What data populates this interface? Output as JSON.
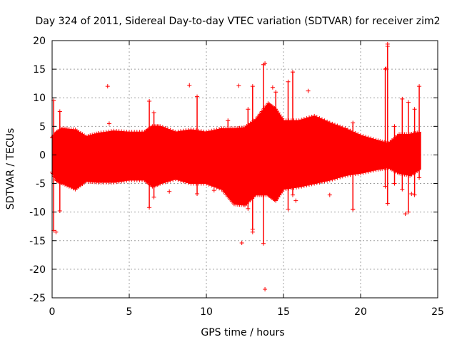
{
  "chart_data": {
    "type": "scatter",
    "title": "Day 324 of 2011, Sidereal Day-to-day VTEC variation (SDTVAR) for receiver zim2",
    "xlabel": "GPS time / hours",
    "ylabel": "SDTVAR / TECUs",
    "xlim": [
      0,
      25
    ],
    "ylim": [
      -25,
      20
    ],
    "x_ticks": [
      "0",
      "5",
      "10",
      "15",
      "20",
      "25"
    ],
    "y_ticks": [
      "20",
      "15",
      "10",
      "5",
      "0",
      "-5",
      "-10",
      "-15",
      "-20",
      "-25"
    ],
    "grid": true,
    "marker": "+",
    "color": "#ff0000",
    "envelope": {
      "x": [
        0,
        0.3,
        0.7,
        1.5,
        2.2,
        3.0,
        4.0,
        5.0,
        6.0,
        6.5,
        7.0,
        8.0,
        9.0,
        10.0,
        11.0,
        11.8,
        12.5,
        13.2,
        14.0,
        14.5,
        15.0,
        16.0,
        17.0,
        18.0,
        19.0,
        20.0,
        21.0,
        21.8,
        22.5,
        23.2,
        23.9
      ],
      "upper": [
        3.0,
        4.0,
        4.6,
        4.4,
        3.2,
        3.8,
        4.2,
        4.0,
        4.0,
        5.0,
        5.0,
        4.0,
        4.4,
        4.0,
        4.6,
        4.6,
        4.8,
        6.2,
        9.0,
        8.0,
        6.0,
        6.0,
        6.8,
        5.6,
        4.6,
        3.4,
        2.6,
        2.0,
        3.6,
        3.6,
        4.0
      ],
      "lower": [
        -3.0,
        -4.5,
        -5.0,
        -6.0,
        -4.6,
        -4.8,
        -4.8,
        -4.4,
        -4.4,
        -5.5,
        -5.0,
        -4.2,
        -5.0,
        -5.0,
        -6.0,
        -8.6,
        -8.8,
        -7.0,
        -7.0,
        -8.0,
        -6.0,
        -5.6,
        -5.0,
        -4.4,
        -3.6,
        -3.2,
        -2.6,
        -2.2,
        -3.2,
        -3.6,
        -2.4
      ]
    },
    "spikes": [
      {
        "x": 0.1,
        "y1": 9.5,
        "y2": -13.2
      },
      {
        "x": 0.5,
        "y1": 7.6,
        "y2": -9.8
      },
      {
        "x": 6.3,
        "y1": 9.4,
        "y2": -9.2
      },
      {
        "x": 6.6,
        "y1": 7.4,
        "y2": -7.4
      },
      {
        "x": 9.4,
        "y1": 10.2,
        "y2": -6.8
      },
      {
        "x": 11.4,
        "y1": 6.0,
        "y2": -6.3
      },
      {
        "x": 12.7,
        "y1": 8.0,
        "y2": -9.4
      },
      {
        "x": 13.0,
        "y1": 12.0,
        "y2": -13.0
      },
      {
        "x": 13.7,
        "y1": 15.8,
        "y2": -15.5
      },
      {
        "x": 14.5,
        "y1": 11.0,
        "y2": -7.8
      },
      {
        "x": 15.3,
        "y1": 12.8,
        "y2": -9.5
      },
      {
        "x": 15.6,
        "y1": 14.5,
        "y2": -7.0
      },
      {
        "x": 19.5,
        "y1": 5.6,
        "y2": -9.5
      },
      {
        "x": 21.6,
        "y1": 15.0,
        "y2": -5.5
      },
      {
        "x": 21.75,
        "y1": 19.0,
        "y2": -8.5
      },
      {
        "x": 22.2,
        "y1": 5.0,
        "y2": -5.0
      },
      {
        "x": 22.7,
        "y1": 9.8,
        "y2": -6.0
      },
      {
        "x": 23.1,
        "y1": 9.2,
        "y2": -10.0
      },
      {
        "x": 23.5,
        "y1": 8.0,
        "y2": -7.0
      },
      {
        "x": 23.8,
        "y1": 12.0,
        "y2": -4.0
      }
    ],
    "outliers": [
      {
        "x": 3.6,
        "y": 12.0
      },
      {
        "x": 8.9,
        "y": 12.2
      },
      {
        "x": 12.1,
        "y": 12.1
      },
      {
        "x": 13.8,
        "y": 16.0
      },
      {
        "x": 14.3,
        "y": 11.8
      },
      {
        "x": 16.6,
        "y": 11.2
      },
      {
        "x": 21.75,
        "y": 19.4
      },
      {
        "x": 21.65,
        "y": 15.1
      },
      {
        "x": 13.8,
        "y": -23.5
      },
      {
        "x": 12.3,
        "y": -15.4
      },
      {
        "x": 13.0,
        "y": -13.5
      },
      {
        "x": 0.25,
        "y": -13.5
      },
      {
        "x": 18.0,
        "y": -7.0
      },
      {
        "x": 19.5,
        "y": -9.5
      },
      {
        "x": 22.9,
        "y": -10.3
      },
      {
        "x": 3.7,
        "y": 5.5
      },
      {
        "x": 7.6,
        "y": -6.4
      },
      {
        "x": 10.5,
        "y": -6.2
      },
      {
        "x": 15.8,
        "y": -8.0
      },
      {
        "x": 23.3,
        "y": -6.8
      }
    ]
  }
}
